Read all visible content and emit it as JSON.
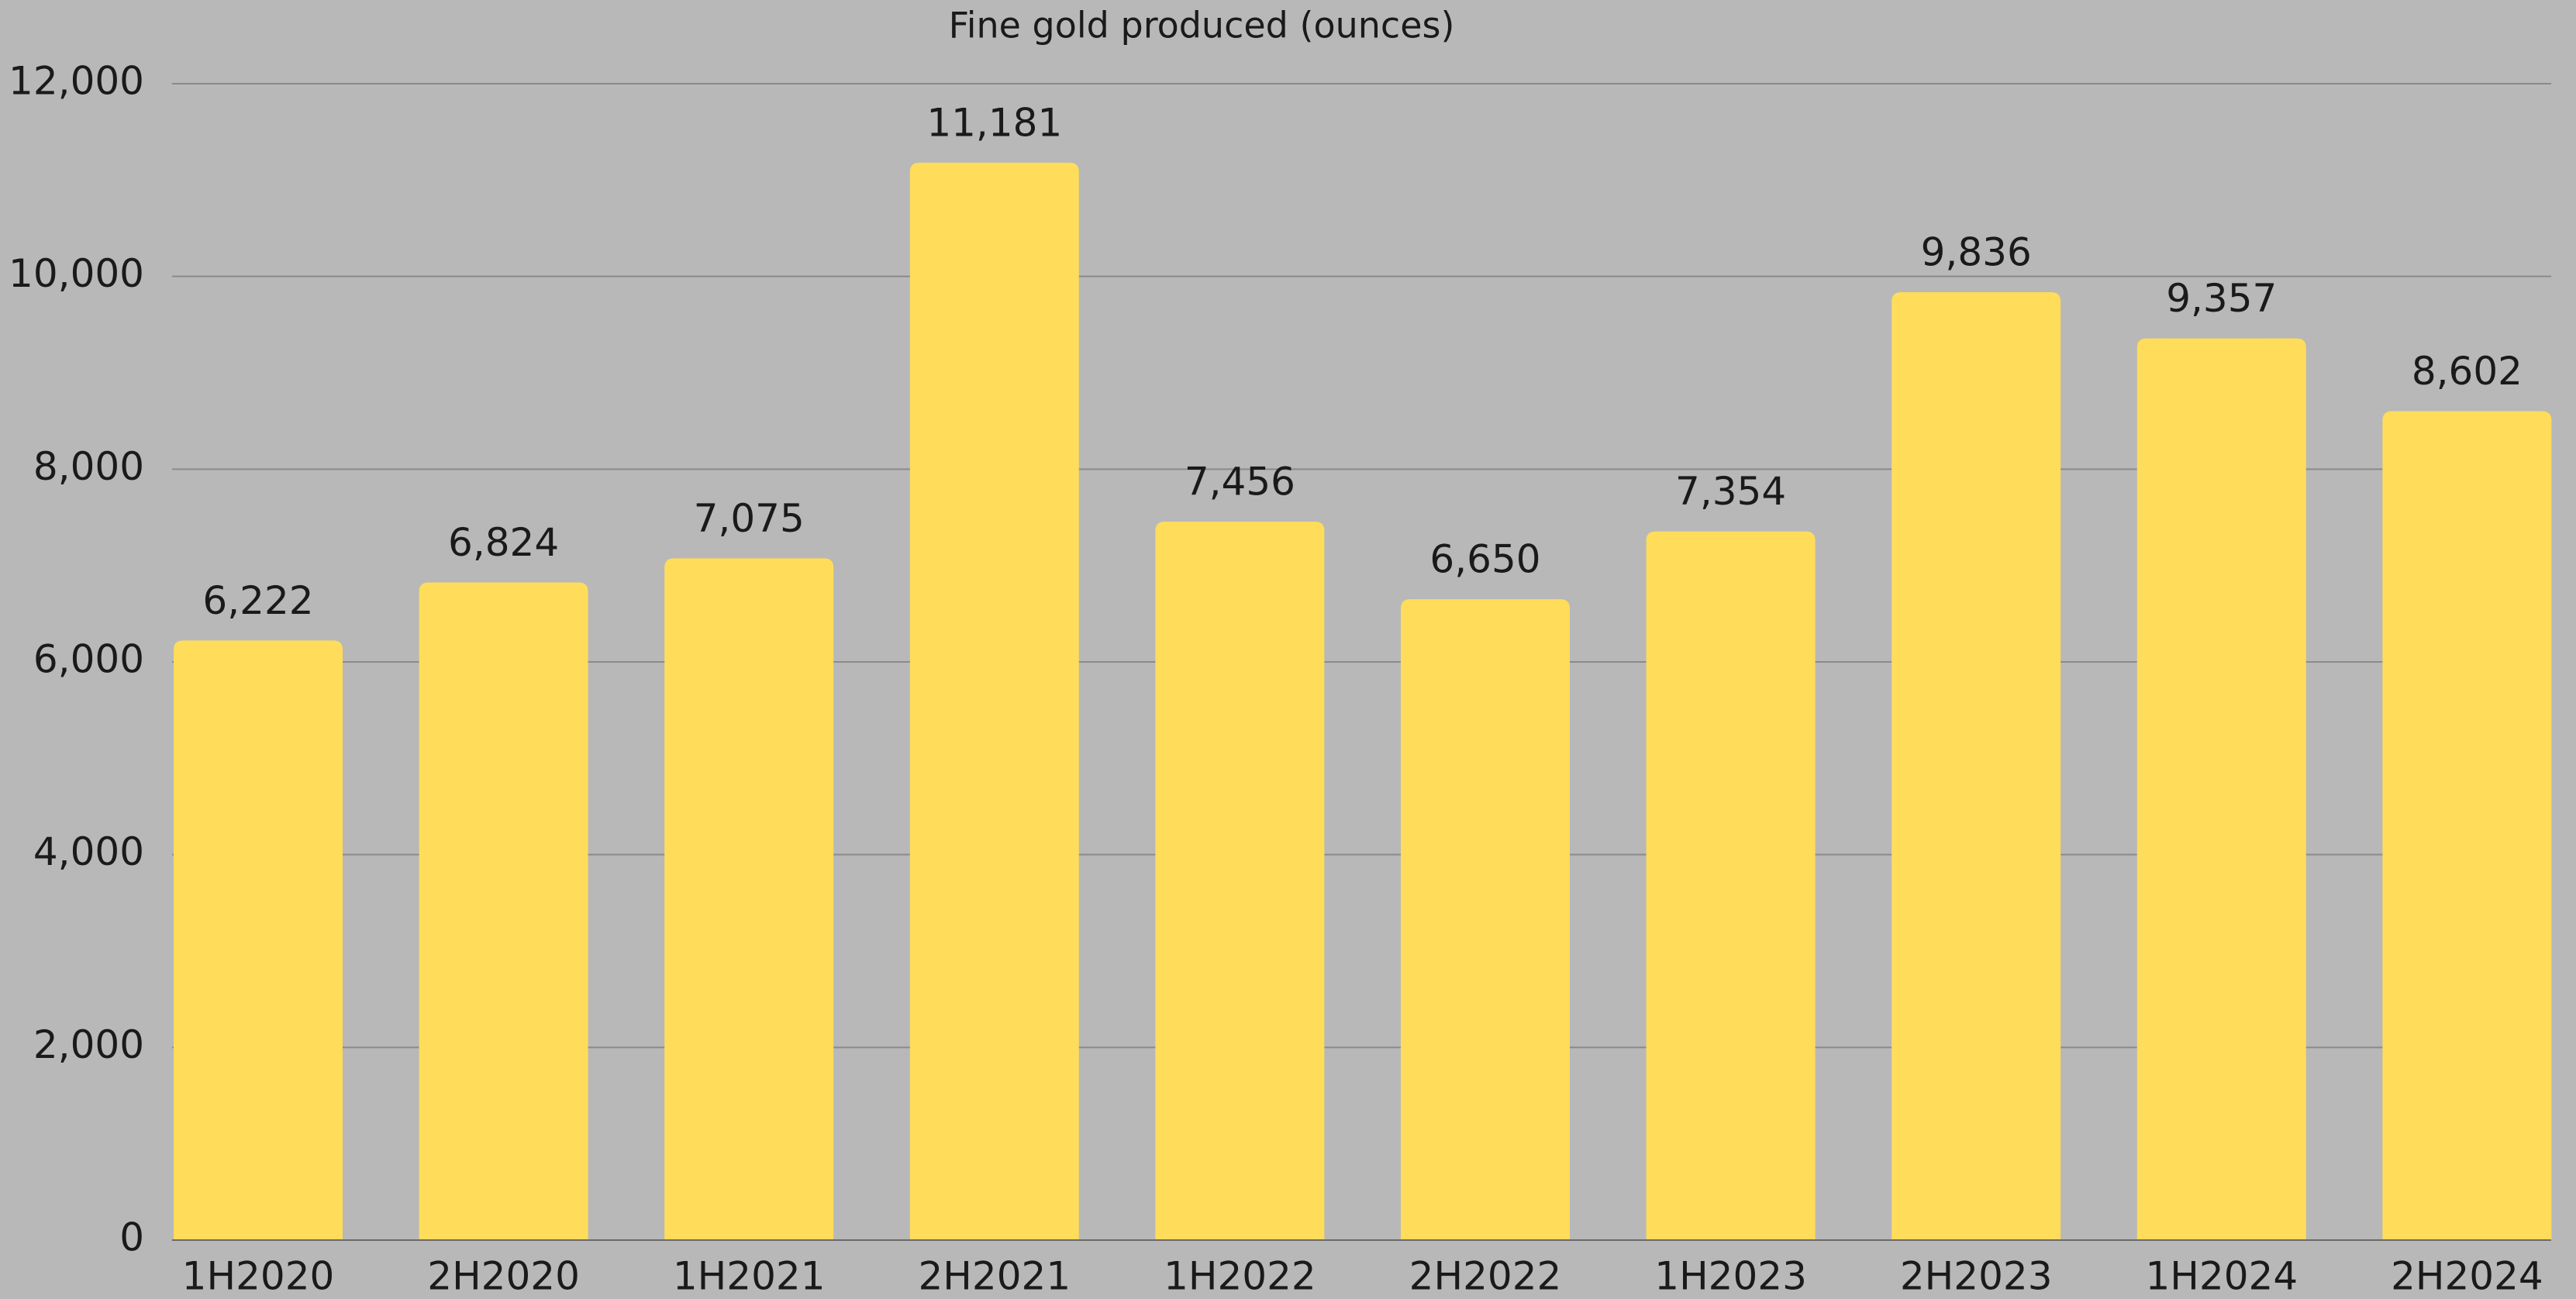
{
  "chart_data": {
    "type": "bar",
    "title": "Fine gold produced (ounces)",
    "categories": [
      "1H2020",
      "2H2020",
      "1H2021",
      "2H2021",
      "1H2022",
      "2H2022",
      "1H2023",
      "2H2023",
      "1H2024",
      "2H2024"
    ],
    "values": [
      6222,
      6824,
      7075,
      11181,
      7456,
      6650,
      7354,
      9836,
      9357,
      8602
    ],
    "value_labels": [
      "6,222",
      "6,824",
      "7,075",
      "11,181",
      "7,456",
      "6,650",
      "7,354",
      "9,836",
      "9,357",
      "8,602"
    ],
    "color": "#ffdc5a",
    "ylim": [
      0,
      12000
    ],
    "yticks": [
      0,
      {
        "value": 2000,
        "label": "2,000"
      },
      {
        "value": 4000,
        "label": "4,000"
      },
      {
        "value": 6000,
        "label": "6,000"
      },
      {
        "value": 8000,
        "label": "8,000"
      },
      {
        "value": 10000,
        "label": "10,000"
      },
      {
        "value": 12000,
        "label": "12,000"
      }
    ],
    "grid": true
  }
}
